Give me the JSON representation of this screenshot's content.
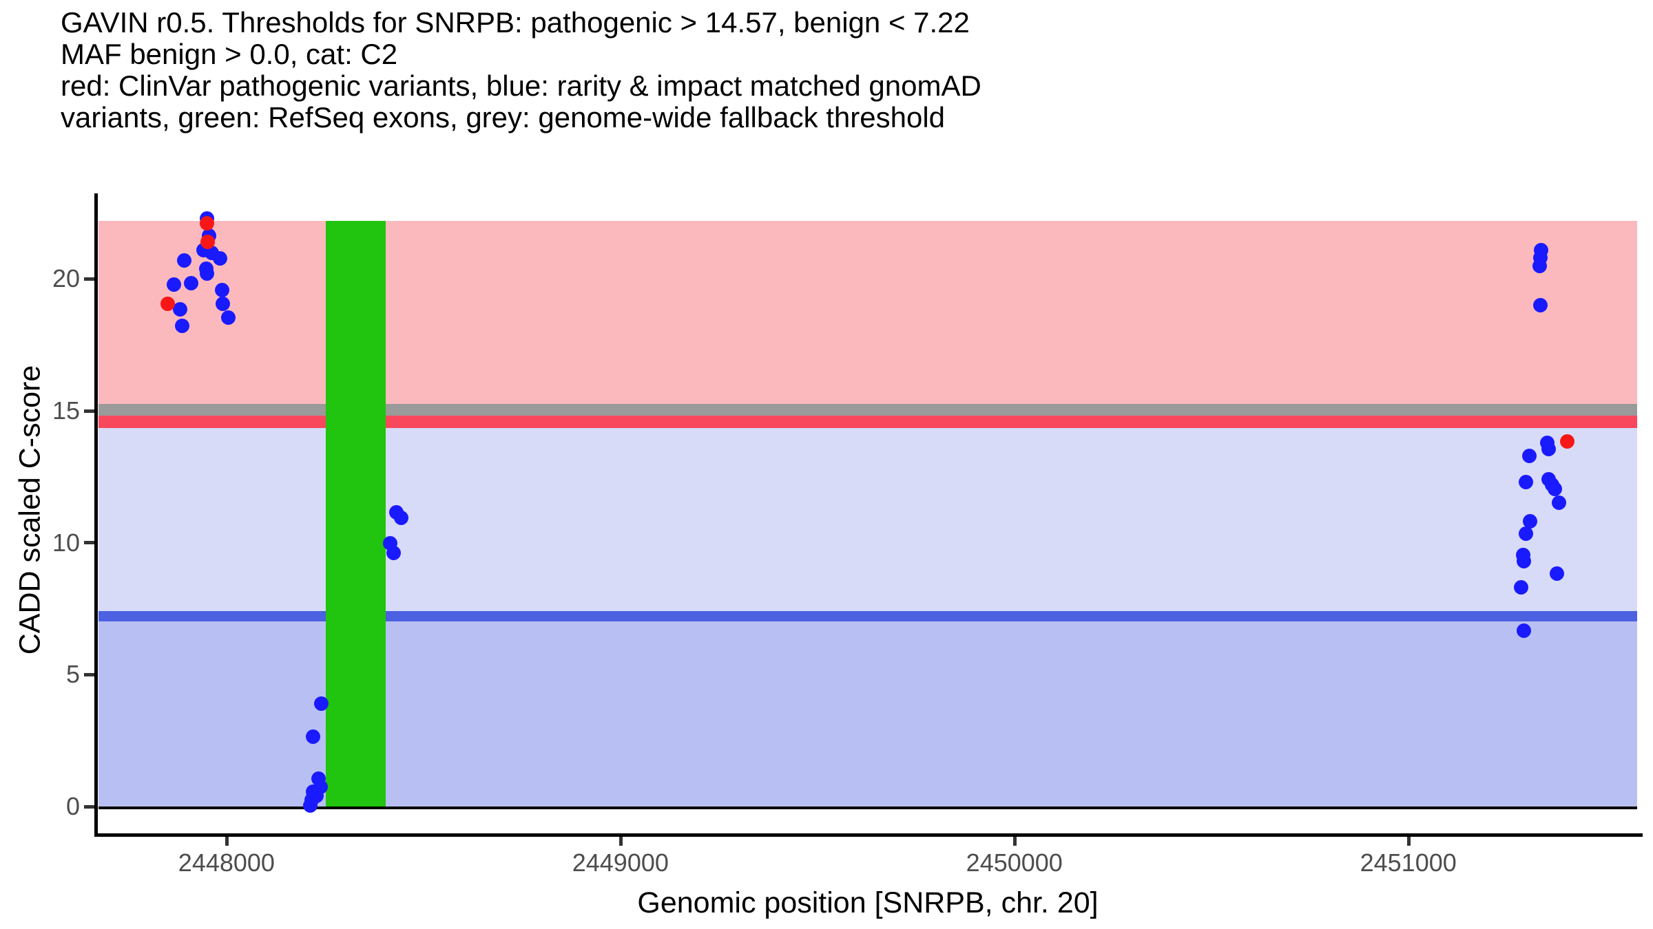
{
  "title": {
    "lines": [
      "GAVIN r0.5. Thresholds for SNRPB: pathogenic > 14.57, benign < 7.22",
      "MAF benign > 0.0, cat: C2",
      "red: ClinVar pathogenic variants, blue: rarity & impact matched gnomAD",
      "variants, green: RefSeq exons, grey: genome-wide fallback threshold"
    ]
  },
  "chart_data": {
    "type": "scatter",
    "title": "GAVIN r0.5. Thresholds for SNRPB: pathogenic > 14.57, benign < 7.22; MAF benign > 0.0, cat: C2",
    "xlabel": "Genomic position [SNRPB, chr. 20]",
    "ylabel": "CADD scaled C-score",
    "x_ticks": [
      2448000,
      2449000,
      2450000,
      2451000
    ],
    "y_ticks": [
      0,
      5,
      10,
      15,
      20
    ],
    "x_range": [
      2447675,
      2451581
    ],
    "y_range": [
      0,
      22.2
    ],
    "grid": "off",
    "legend": "none",
    "thresholds": {
      "pathogenic_gt": 14.57,
      "benign_lt": 7.22,
      "maf_benign_gt": 0.0,
      "category": "C2",
      "genome_wide_fallback": 15.0
    },
    "bands": [
      {
        "name": "pathogenic-region",
        "from": 14.57,
        "to": 22.2,
        "color": "#fbb9be"
      },
      {
        "name": "vus-region",
        "from": 7.22,
        "to": 14.57,
        "color": "#d7dbf8"
      },
      {
        "name": "benign-region",
        "from": 0,
        "to": 7.22,
        "color": "#b8c0f3"
      }
    ],
    "threshold_lines": [
      {
        "name": "genome-wide-fallback",
        "center": 15.05,
        "half_width": 0.22,
        "color": "#9a9a9a"
      },
      {
        "name": "pathogenic-threshold",
        "center": 14.59,
        "half_width": 0.235,
        "color": "#f9485c"
      },
      {
        "name": "benign-threshold",
        "center": 7.22,
        "half_width": 0.195,
        "color": "#4b61e1"
      }
    ],
    "exons": [
      {
        "name": "refseq-exon",
        "start": 2448252,
        "end": 2448404,
        "color": "#21c40e"
      }
    ],
    "series": [
      {
        "name": "rarity & impact matched gnomAD variants",
        "short": "gnomad",
        "color": "#1a1aff",
        "points": [
          [
            2447951,
            22.3
          ],
          [
            2447955,
            21.65
          ],
          [
            2447942,
            21.1
          ],
          [
            2447962,
            21.0
          ],
          [
            2447983,
            20.77
          ],
          [
            2447892,
            20.69
          ],
          [
            2447949,
            20.4
          ],
          [
            2447951,
            20.2
          ],
          [
            2447911,
            19.83
          ],
          [
            2447867,
            19.8
          ],
          [
            2447988,
            19.57
          ],
          [
            2447990,
            19.05
          ],
          [
            2447883,
            18.84
          ],
          [
            2448005,
            18.53
          ],
          [
            2447888,
            18.21
          ],
          [
            2448432,
            11.16
          ],
          [
            2448444,
            10.95
          ],
          [
            2448416,
            9.97
          ],
          [
            2448424,
            9.62
          ],
          [
            2448241,
            3.91
          ],
          [
            2448219,
            2.66
          ],
          [
            2448234,
            1.05
          ],
          [
            2448238,
            0.75
          ],
          [
            2448220,
            0.57
          ],
          [
            2448229,
            0.4
          ],
          [
            2448217,
            0.24
          ],
          [
            2448212,
            0.05
          ],
          [
            2451337,
            21.1
          ],
          [
            2451336,
            20.8
          ],
          [
            2451333,
            20.5
          ],
          [
            2451336,
            19.0
          ],
          [
            2451352,
            13.8
          ],
          [
            2451357,
            13.55
          ],
          [
            2451307,
            13.28
          ],
          [
            2451356,
            12.4
          ],
          [
            2451365,
            12.19
          ],
          [
            2451372,
            12.04
          ],
          [
            2451383,
            11.53
          ],
          [
            2451299,
            12.29
          ],
          [
            2451309,
            10.82
          ],
          [
            2451299,
            10.34
          ],
          [
            2451291,
            9.53
          ],
          [
            2451293,
            9.29
          ],
          [
            2451378,
            8.84
          ],
          [
            2451287,
            8.32
          ],
          [
            2451293,
            6.66
          ]
        ]
      },
      {
        "name": "ClinVar pathogenic variants",
        "short": "clinvar",
        "color": "#f81717",
        "points": [
          [
            2447950,
            22.1
          ],
          [
            2447953,
            21.4
          ],
          [
            2447850,
            19.05
          ],
          [
            2451404,
            13.85
          ]
        ]
      }
    ]
  }
}
